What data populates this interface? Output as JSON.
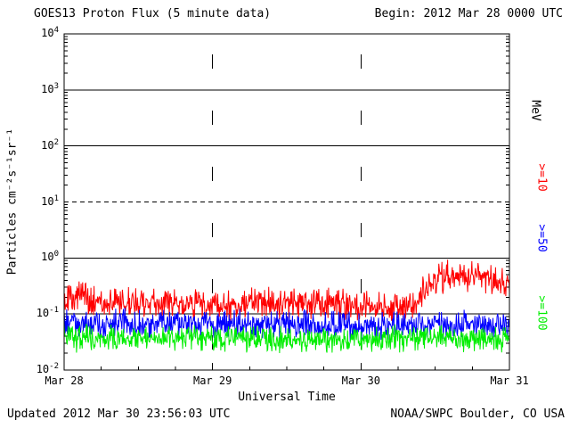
{
  "header": {
    "title": "GOES13 Proton Flux (5 minute data)",
    "begin": "Begin: 2012 Mar 28 0000 UTC"
  },
  "axes": {
    "xlabel": "Universal Time",
    "ylabel": "Particles cm⁻²s⁻¹sr⁻¹",
    "unit_label": "MeV"
  },
  "footer": {
    "updated": "Updated 2012 Mar 30 23:56:03 UTC",
    "source": "NOAA/SWPC Boulder, CO USA"
  },
  "chart_data": {
    "type": "line",
    "title": "GOES13 Proton Flux (5 minute data)",
    "xlabel": "Universal Time",
    "ylabel": "Particles cm-2 s-1 sr-1",
    "x_range_days": [
      0,
      3
    ],
    "x_ticks": [
      "Mar 28",
      "Mar 29",
      "Mar 30",
      "Mar 31"
    ],
    "y_log_range": [
      -2,
      4
    ],
    "y_tick_exponents": [
      4,
      3,
      2,
      1,
      0,
      -1,
      -2
    ],
    "threshold_dashed_at_exponent": 1,
    "cadence_minutes": 5,
    "grid": "horizontal solid lines at each decade, dashed at 10^1, dotted vertical lines at day boundaries",
    "series": [
      {
        "label": ">=10",
        "name": ">=10 MeV",
        "color": "#ff0000",
        "trend_anchors_day_flux": [
          [
            0,
            0.18
          ],
          [
            0.05,
            0.22
          ],
          [
            0.3,
            0.16
          ],
          [
            1.0,
            0.15
          ],
          [
            1.7,
            0.15
          ],
          [
            2.1,
            0.13
          ],
          [
            2.35,
            0.13
          ],
          [
            2.45,
            0.3
          ],
          [
            2.55,
            0.45
          ],
          [
            2.65,
            0.42
          ],
          [
            2.8,
            0.5
          ],
          [
            2.9,
            0.42
          ],
          [
            3.0,
            0.32
          ]
        ],
        "noise_halfwidth_dex": 0.33
      },
      {
        "label": ">=50",
        "name": ">=50 MeV",
        "color": "#0000ff",
        "trend_anchors_day_flux": [
          [
            0,
            0.07
          ],
          [
            1,
            0.065
          ],
          [
            2,
            0.06
          ],
          [
            2.5,
            0.068
          ],
          [
            3,
            0.062
          ]
        ],
        "noise_halfwidth_dex": 0.3
      },
      {
        "label": ">=100",
        "name": ">=100 MeV",
        "color": "#00ee00",
        "trend_anchors_day_flux": [
          [
            0,
            0.038
          ],
          [
            1,
            0.036
          ],
          [
            2,
            0.034
          ],
          [
            2.5,
            0.038
          ],
          [
            3,
            0.034
          ]
        ],
        "noise_halfwidth_dex": 0.27
      }
    ]
  }
}
